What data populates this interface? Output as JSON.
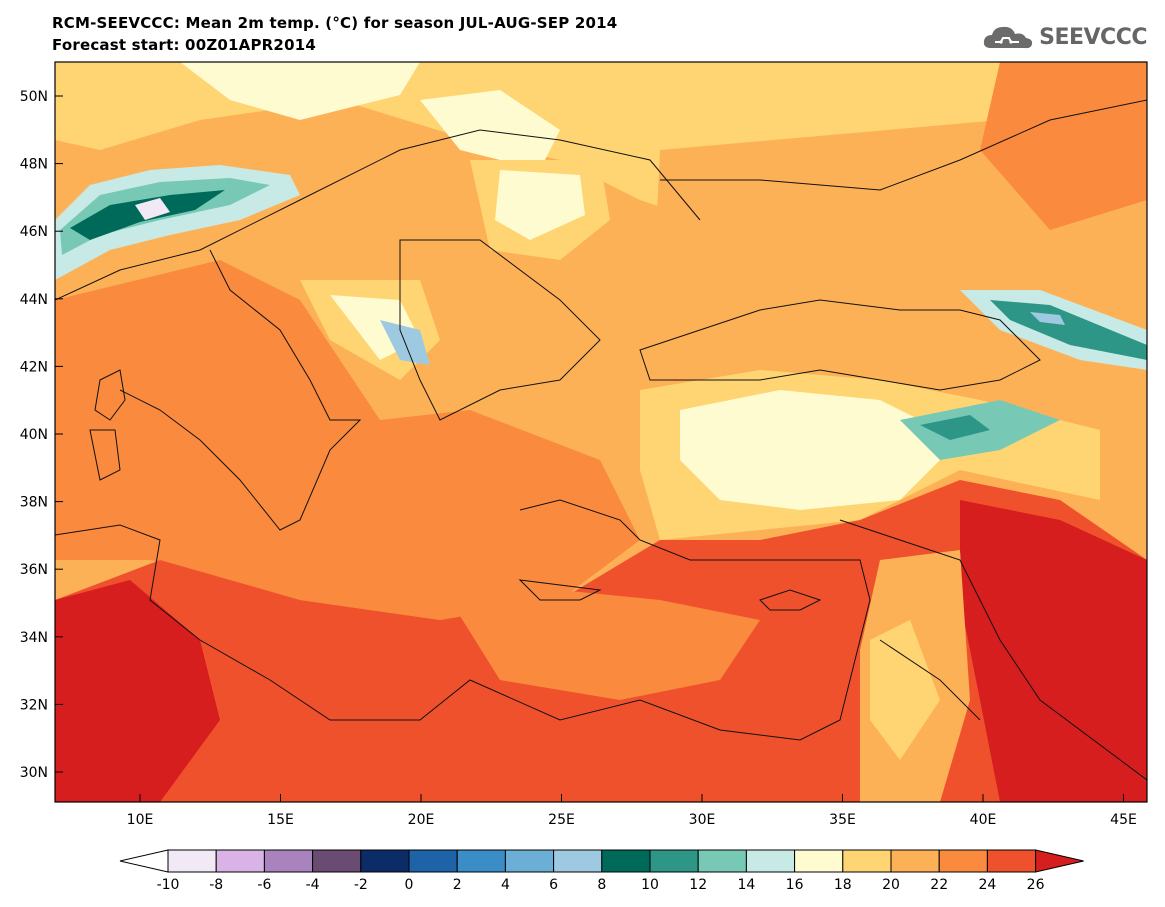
{
  "header": {
    "title": "RCM-SEEVCCC: Mean 2m temp. (°C) for season JUL-AUG-SEP 2014",
    "subtitle": "Forecast start: 00Z01APR2014",
    "logo_text": "SEEVCCC"
  },
  "map": {
    "lat_ticks": [
      "50N",
      "48N",
      "46N",
      "44N",
      "42N",
      "40N",
      "38N",
      "36N",
      "34N",
      "32N",
      "30N"
    ],
    "lon_ticks": [
      "10E",
      "15E",
      "20E",
      "25E",
      "30E",
      "35E",
      "40E",
      "45E"
    ]
  },
  "colorbar": {
    "labels": [
      "-10",
      "-8",
      "-6",
      "-4",
      "-2",
      "0",
      "2",
      "4",
      "6",
      "8",
      "10",
      "12",
      "14",
      "16",
      "18",
      "20",
      "22",
      "24",
      "26"
    ],
    "colors": [
      "#f2e9f7",
      "#d9b3e6",
      "#a883be",
      "#6a4c73",
      "#0b2c66",
      "#1e62a7",
      "#3b8dc8",
      "#6baed6",
      "#9ecae1",
      "#006a5a",
      "#2d9687",
      "#78c8b6",
      "#c8eae6",
      "#fffbd1",
      "#fed572",
      "#fdb157",
      "#f98a3e",
      "#f0512d",
      "#d61e1e"
    ]
  }
}
